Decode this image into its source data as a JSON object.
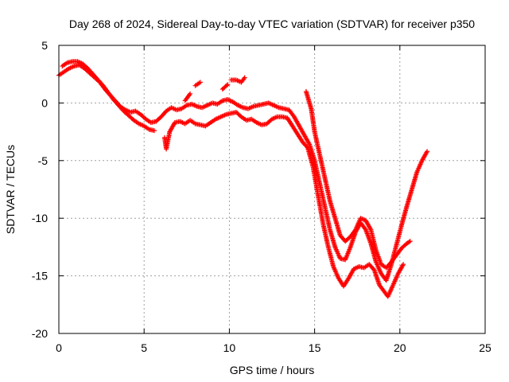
{
  "chart_data": {
    "type": "scatter",
    "title": "Day 268 of 2024, Sidereal Day-to-day VTEC variation (SDTVAR) for receiver p350",
    "xlabel": "GPS time / hours",
    "ylabel": "SDTVAR / TECUs",
    "xlim": [
      0,
      25
    ],
    "ylim": [
      -20,
      5
    ],
    "xticks": [
      "0",
      "5",
      "10",
      "15",
      "20",
      "25"
    ],
    "yticks": [
      "5",
      "0",
      "-5",
      "-10",
      "-15",
      "-20"
    ],
    "grid": true,
    "marker": "plus",
    "color": "#ff0000",
    "series": [
      {
        "points": [
          [
            0.0,
            2.4
          ],
          [
            0.3,
            2.7
          ],
          [
            0.6,
            3.0
          ],
          [
            0.9,
            3.2
          ],
          [
            1.2,
            3.3
          ],
          [
            1.5,
            3.0
          ],
          [
            1.8,
            2.6
          ],
          [
            2.1,
            2.2
          ],
          [
            2.4,
            1.8
          ],
          [
            2.7,
            1.2
          ],
          [
            3.0,
            0.7
          ],
          [
            3.3,
            0.2
          ],
          [
            3.6,
            -0.3
          ],
          [
            3.9,
            -0.6
          ],
          [
            4.2,
            -0.8
          ],
          [
            4.5,
            -0.7
          ],
          [
            4.8,
            -1.0
          ],
          [
            5.1,
            -1.4
          ],
          [
            5.4,
            -1.7
          ],
          [
            5.7,
            -1.6
          ],
          [
            6.0,
            -1.2
          ],
          [
            6.3,
            -0.7
          ],
          [
            6.6,
            -0.4
          ],
          [
            6.9,
            -0.6
          ],
          [
            7.2,
            -0.5
          ],
          [
            7.5,
            -0.2
          ],
          [
            7.8,
            -0.1
          ],
          [
            8.1,
            -0.3
          ],
          [
            8.4,
            -0.4
          ],
          [
            8.7,
            -0.2
          ],
          [
            9.0,
            0.0
          ],
          [
            9.3,
            -0.1
          ],
          [
            9.6,
            0.2
          ],
          [
            9.9,
            0.3
          ],
          [
            10.2,
            0.1
          ],
          [
            10.5,
            -0.2
          ],
          [
            10.8,
            -0.4
          ],
          [
            11.1,
            -0.5
          ],
          [
            11.4,
            -0.3
          ],
          [
            11.7,
            -0.2
          ],
          [
            12.0,
            -0.1
          ],
          [
            12.3,
            0.0
          ],
          [
            12.6,
            -0.2
          ],
          [
            12.9,
            -0.4
          ],
          [
            13.2,
            -0.5
          ],
          [
            13.5,
            -0.6
          ],
          [
            13.8,
            -1.2
          ],
          [
            14.1,
            -2.0
          ],
          [
            14.4,
            -2.8
          ],
          [
            14.7,
            -3.6
          ],
          [
            15.0,
            -5.0
          ],
          [
            15.3,
            -7.0
          ],
          [
            15.6,
            -9.0
          ],
          [
            15.9,
            -11.0
          ],
          [
            16.2,
            -12.5
          ],
          [
            16.5,
            -13.5
          ],
          [
            16.8,
            -13.6
          ],
          [
            17.1,
            -12.5
          ],
          [
            17.4,
            -11.2
          ],
          [
            17.7,
            -10.4
          ],
          [
            18.0,
            -11.0
          ],
          [
            18.3,
            -12.2
          ],
          [
            18.6,
            -13.8
          ],
          [
            18.9,
            -14.8
          ],
          [
            19.2,
            -15.4
          ],
          [
            19.5,
            -14.0
          ],
          [
            19.8,
            -12.3
          ],
          [
            20.1,
            -10.6
          ],
          [
            20.4,
            -9.0
          ],
          [
            20.7,
            -7.5
          ],
          [
            21.0,
            -6.0
          ],
          [
            21.3,
            -5.0
          ],
          [
            21.6,
            -4.2
          ],
          [
            0.2,
            3.2
          ],
          [
            0.5,
            3.5
          ],
          [
            0.8,
            3.6
          ],
          [
            1.1,
            3.6
          ],
          [
            1.4,
            3.4
          ],
          [
            1.7,
            3.0
          ],
          [
            2.0,
            2.5
          ],
          [
            2.3,
            2.0
          ],
          [
            2.6,
            1.5
          ],
          [
            2.9,
            0.9
          ],
          [
            3.2,
            0.3
          ],
          [
            3.5,
            -0.2
          ],
          [
            3.8,
            -0.7
          ],
          [
            4.1,
            -1.1
          ],
          [
            4.4,
            -1.5
          ],
          [
            4.7,
            -1.8
          ],
          [
            5.0,
            -2.0
          ],
          [
            5.3,
            -2.3
          ],
          [
            5.6,
            -2.4
          ],
          [
            6.2,
            -3.0
          ],
          [
            6.3,
            -4.0
          ],
          [
            6.5,
            -2.5
          ],
          [
            6.8,
            -1.7
          ],
          [
            7.1,
            -1.6
          ],
          [
            7.4,
            -1.8
          ],
          [
            7.7,
            -1.5
          ],
          [
            8.0,
            -1.8
          ],
          [
            8.3,
            -1.9
          ],
          [
            8.6,
            -2.0
          ],
          [
            8.9,
            -1.7
          ],
          [
            9.2,
            -1.4
          ],
          [
            9.5,
            -1.2
          ],
          [
            9.8,
            -1.0
          ],
          [
            10.1,
            -0.9
          ],
          [
            10.4,
            -0.8
          ],
          [
            10.7,
            -1.2
          ],
          [
            11.0,
            -1.5
          ],
          [
            11.3,
            -1.4
          ],
          [
            11.6,
            -1.7
          ],
          [
            11.9,
            -1.9
          ],
          [
            12.2,
            -1.8
          ],
          [
            12.5,
            -1.4
          ],
          [
            12.8,
            -1.2
          ],
          [
            13.1,
            -1.2
          ],
          [
            13.4,
            -1.3
          ],
          [
            13.7,
            -2.0
          ],
          [
            14.0,
            -2.7
          ],
          [
            14.3,
            -3.4
          ],
          [
            14.6,
            -3.9
          ],
          [
            14.9,
            -5.5
          ],
          [
            15.2,
            -8.0
          ],
          [
            15.5,
            -10.5
          ],
          [
            15.8,
            -12.5
          ],
          [
            16.1,
            -14.2
          ],
          [
            16.4,
            -15.2
          ],
          [
            16.7,
            -15.9
          ],
          [
            17.0,
            -15.2
          ],
          [
            17.3,
            -14.4
          ],
          [
            17.6,
            -14.2
          ],
          [
            17.9,
            -14.3
          ],
          [
            18.2,
            -14.0
          ],
          [
            18.5,
            -14.5
          ],
          [
            18.8,
            -15.8
          ],
          [
            19.1,
            -16.4
          ],
          [
            19.3,
            -16.8
          ],
          [
            19.6,
            -15.8
          ],
          [
            19.9,
            -14.8
          ],
          [
            20.2,
            -14.0
          ],
          [
            8.0,
            1.5
          ],
          [
            8.3,
            1.8
          ],
          [
            7.7,
            0.8
          ],
          [
            7.4,
            0.2
          ],
          [
            10.1,
            2.0
          ],
          [
            10.4,
            2.0
          ],
          [
            10.7,
            1.8
          ],
          [
            10.9,
            2.2
          ],
          [
            9.6,
            1.2
          ],
          [
            9.9,
            1.6
          ],
          [
            14.5,
            1.0
          ],
          [
            14.8,
            -0.5
          ],
          [
            15.0,
            -2.5
          ],
          [
            15.3,
            -4.5
          ],
          [
            15.6,
            -6.5
          ],
          [
            15.9,
            -8.5
          ],
          [
            16.2,
            -10.0
          ],
          [
            16.5,
            -11.5
          ],
          [
            16.8,
            -12.0
          ],
          [
            17.1,
            -11.6
          ],
          [
            17.4,
            -11.0
          ],
          [
            17.7,
            -10.0
          ],
          [
            18.0,
            -10.2
          ],
          [
            18.3,
            -11.0
          ],
          [
            18.6,
            -12.8
          ],
          [
            18.9,
            -14.0
          ],
          [
            19.2,
            -14.3
          ],
          [
            19.5,
            -13.8
          ],
          [
            19.8,
            -13.2
          ],
          [
            20.1,
            -12.6
          ],
          [
            20.4,
            -12.2
          ],
          [
            20.6,
            -12.0
          ]
        ]
      }
    ]
  }
}
